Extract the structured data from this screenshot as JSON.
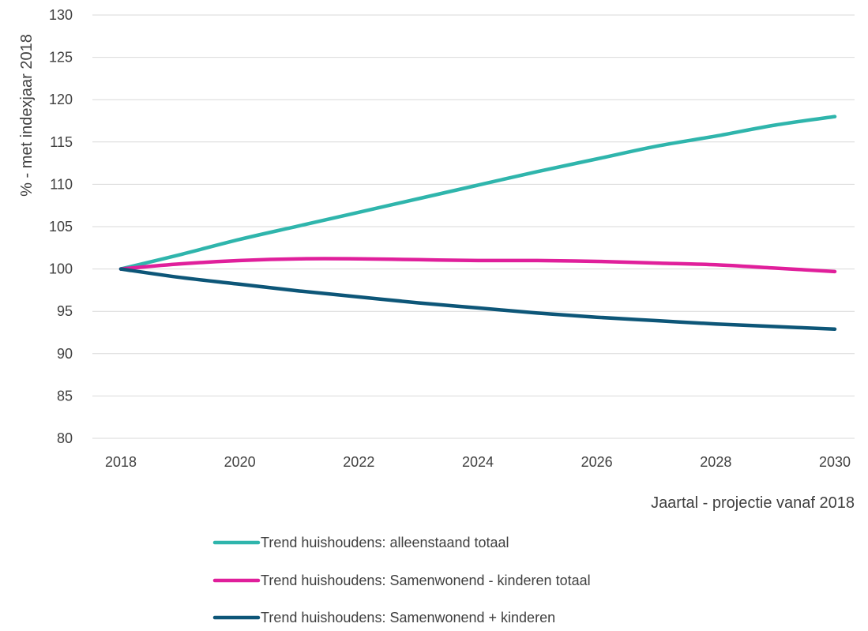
{
  "chart_data": {
    "type": "line",
    "title": "",
    "xlabel": "Jaartal - projectie vanaf 2018",
    "ylabel": "% - met indexjaar 2018",
    "xlim": [
      2018,
      2030
    ],
    "ylim": [
      80,
      130
    ],
    "x_ticks": [
      2018,
      2020,
      2022,
      2024,
      2026,
      2028,
      2030
    ],
    "y_ticks": [
      80,
      85,
      90,
      95,
      100,
      105,
      110,
      115,
      120,
      125,
      130
    ],
    "grid": "horizontal",
    "legend_position": "bottom",
    "x": [
      2018,
      2019,
      2020,
      2021,
      2022,
      2023,
      2024,
      2025,
      2026,
      2027,
      2028,
      2029,
      2030
    ],
    "series": [
      {
        "name": "Trend huishoudens: alleenstaand totaal",
        "color": "#2fb5ac",
        "values": [
          100,
          101.7,
          103.5,
          105.1,
          106.7,
          108.3,
          109.9,
          111.5,
          113.0,
          114.5,
          115.7,
          117.0,
          118.0
        ]
      },
      {
        "name": "Trend huishoudens: Samenwonend - kinderen totaal",
        "color": "#e01f9b",
        "values": [
          100,
          100.6,
          101.0,
          101.2,
          101.2,
          101.1,
          101.0,
          101.0,
          100.9,
          100.7,
          100.5,
          100.1,
          99.7
        ]
      },
      {
        "name": "Trend huishoudens: Samenwonend + kinderen",
        "color": "#0d5678",
        "values": [
          100,
          99.0,
          98.2,
          97.4,
          96.7,
          96.0,
          95.4,
          94.8,
          94.3,
          93.9,
          93.5,
          93.2,
          92.9
        ]
      }
    ]
  }
}
